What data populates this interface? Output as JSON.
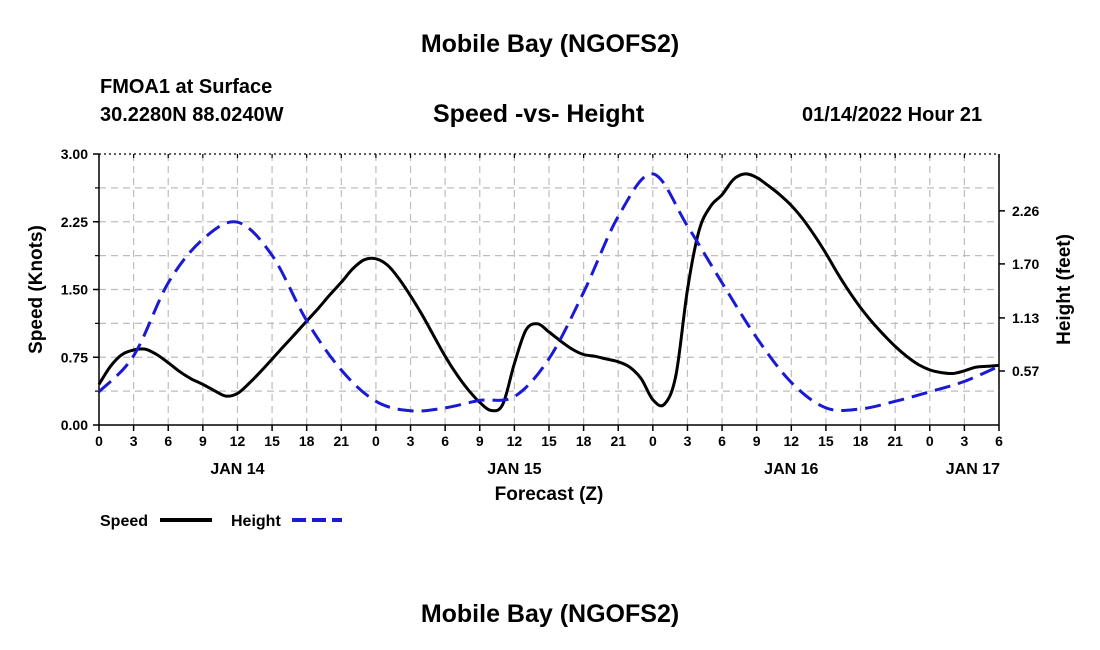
{
  "title": "Mobile Bay (NGOFS2)",
  "bottom_title": "Mobile Bay (NGOFS2)",
  "station": {
    "name": "FMOA1 at Surface",
    "coords": "30.2280N  88.0240W"
  },
  "forecast_time": "01/14/2022 Hour 21",
  "colors": {
    "speed": "#000000",
    "height": "#1a1ad6",
    "grid": "#bdbdbd"
  },
  "chart_data": {
    "type": "line",
    "title": "Speed -vs- Height",
    "xlabel": "Forecast (Z)",
    "ylabel_left": "Speed (Knots)",
    "ylabel_right": "Height (feet)",
    "x_range_hours": [
      0,
      78
    ],
    "x_ticks": [
      "0",
      "3",
      "6",
      "9",
      "12",
      "15",
      "18",
      "21",
      "0",
      "3",
      "6",
      "9",
      "12",
      "15",
      "18",
      "21",
      "0",
      "3",
      "6",
      "9",
      "12",
      "15",
      "18",
      "21",
      "0",
      "3",
      "6"
    ],
    "day_labels": [
      {
        "label": "JAN 14",
        "hour": 12
      },
      {
        "label": "JAN 15",
        "hour": 36
      },
      {
        "label": "JAN 16",
        "hour": 60
      },
      {
        "label": "JAN 17",
        "hour": 78
      }
    ],
    "y_left": {
      "range": [
        0,
        3.0
      ],
      "ticks": [
        "0.00",
        "0.75",
        "1.50",
        "2.25",
        "3.00"
      ],
      "tick_values": [
        0,
        0.75,
        1.5,
        2.25,
        3.0
      ]
    },
    "y_right": {
      "range": [
        0,
        2.86
      ],
      "ticks": [
        "0.57",
        "1.13",
        "1.70",
        "2.26"
      ],
      "tick_values": [
        0.57,
        1.13,
        1.7,
        2.26
      ]
    },
    "legend": [
      {
        "label": "Speed",
        "style": "solid"
      },
      {
        "label": "Height",
        "style": "dashed"
      }
    ],
    "series": [
      {
        "name": "Speed",
        "axis": "left",
        "style": "solid",
        "x": [
          0,
          1,
          2,
          3,
          4,
          5,
          6,
          7,
          8,
          9,
          10,
          11,
          12,
          13,
          14,
          15,
          16,
          17,
          18,
          19,
          20,
          21,
          22,
          23,
          24,
          25,
          26,
          27,
          28,
          29,
          30,
          31,
          32,
          33,
          34,
          35,
          36,
          37,
          38,
          39,
          40,
          41,
          42,
          43,
          44,
          45,
          46,
          47,
          48,
          49,
          50,
          51,
          52,
          53,
          54,
          55,
          56,
          57,
          58,
          59,
          60,
          61,
          62,
          63,
          64,
          65,
          66,
          67,
          68,
          69,
          70,
          71,
          72,
          73,
          74,
          75,
          76,
          77,
          78
        ],
        "y": [
          0.45,
          0.65,
          0.78,
          0.83,
          0.84,
          0.78,
          0.69,
          0.59,
          0.51,
          0.45,
          0.38,
          0.32,
          0.35,
          0.46,
          0.59,
          0.73,
          0.87,
          1.01,
          1.15,
          1.29,
          1.44,
          1.58,
          1.73,
          1.83,
          1.84,
          1.77,
          1.62,
          1.43,
          1.22,
          0.99,
          0.76,
          0.56,
          0.39,
          0.25,
          0.16,
          0.23,
          0.68,
          1.05,
          1.12,
          1.03,
          0.93,
          0.84,
          0.78,
          0.76,
          0.73,
          0.7,
          0.64,
          0.51,
          0.28,
          0.23,
          0.55,
          1.5,
          2.15,
          2.42,
          2.55,
          2.72,
          2.78,
          2.74,
          2.65,
          2.55,
          2.43,
          2.28,
          2.1,
          1.9,
          1.68,
          1.48,
          1.3,
          1.14,
          1.0,
          0.87,
          0.76,
          0.67,
          0.61,
          0.58,
          0.57,
          0.6,
          0.64,
          0.65,
          0.66
        ]
      },
      {
        "name": "Height",
        "axis": "right",
        "style": "dashed",
        "x": [
          0,
          3,
          6,
          9,
          12,
          15,
          18,
          21,
          24,
          27,
          30,
          33,
          36,
          39,
          42,
          45,
          48,
          51,
          54,
          57,
          60,
          63,
          66,
          69,
          72,
          75,
          78
        ],
        "y": [
          0.35,
          0.73,
          1.5,
          1.96,
          2.14,
          1.79,
          1.1,
          0.58,
          0.25,
          0.15,
          0.18,
          0.26,
          0.3,
          0.7,
          1.4,
          2.2,
          2.65,
          2.1,
          1.5,
          0.92,
          0.45,
          0.18,
          0.17,
          0.25,
          0.35,
          0.46,
          0.62
        ]
      }
    ]
  }
}
